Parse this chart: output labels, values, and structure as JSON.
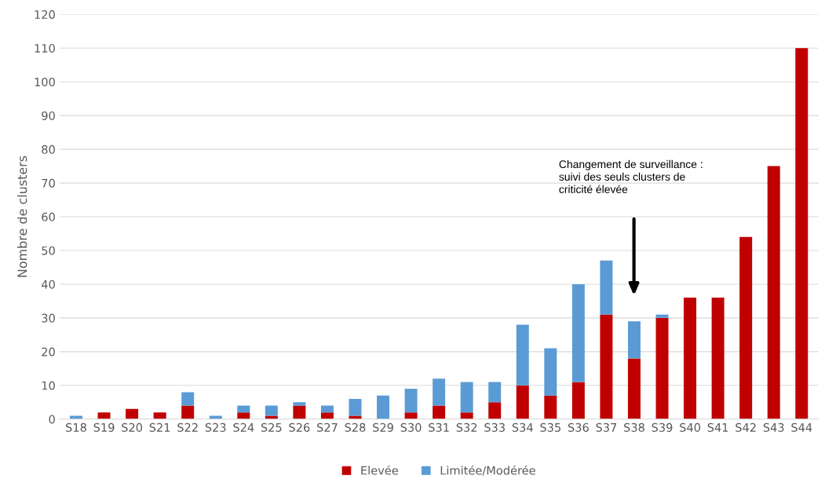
{
  "chart_data": {
    "type": "bar",
    "stacked": true,
    "ylabel": "Nombre de clusters",
    "categories": [
      "S18",
      "S19",
      "S20",
      "S21",
      "S22",
      "S23",
      "S24",
      "S25",
      "S26",
      "S27",
      "S28",
      "S29",
      "S30",
      "S31",
      "S32",
      "S33",
      "S34",
      "S35",
      "S36",
      "S37",
      "S38",
      "S39",
      "S40",
      "S41",
      "S42",
      "S43",
      "S44"
    ],
    "series": [
      {
        "name": "Elevée",
        "color": "#c00000",
        "values": [
          0,
          2,
          3,
          2,
          4,
          0,
          2,
          1,
          4,
          2,
          1,
          0,
          2,
          4,
          2,
          5,
          10,
          7,
          11,
          31,
          18,
          30,
          36,
          36,
          54,
          75,
          110
        ]
      },
      {
        "name": "Limitée/Modérée",
        "color": "#5b9bd5",
        "values": [
          1,
          0,
          0,
          0,
          4,
          1,
          2,
          3,
          1,
          2,
          5,
          7,
          7,
          8,
          9,
          6,
          18,
          14,
          29,
          16,
          11,
          1,
          0,
          0,
          0,
          0,
          0
        ]
      }
    ],
    "ylim": [
      0,
      120
    ],
    "yticks": [
      0,
      10,
      20,
      30,
      40,
      50,
      60,
      70,
      80,
      90,
      100,
      110,
      120
    ],
    "grid": "y",
    "legend": "bottom",
    "annotations": [
      "Changement de surveillance :\nsuivi des seuls clusters de\ncriticité élevée"
    ]
  }
}
